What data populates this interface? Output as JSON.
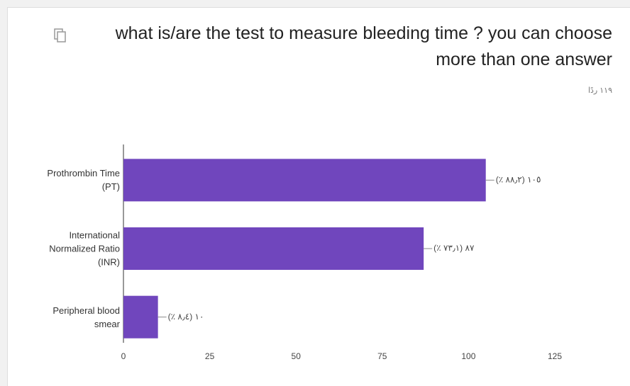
{
  "chart_data": {
    "type": "bar",
    "orientation": "horizontal",
    "title": "what is/are the test to measure bleeding time ? you can choose more than one answer",
    "subtitle": "١١٩ ردًا",
    "categories": [
      "Prothrombin Time (PT)",
      "International Normalized Ratio (INR)",
      "Peripheral blood smear"
    ],
    "values": [
      105,
      87,
      10
    ],
    "value_labels": [
      "١٠٥ (٨٨٫٢ ٪)",
      "٨٧ (٧٣٫١ ٪)",
      "١٠ (٨٫٤ ٪)"
    ],
    "color": "#7046bd",
    "xlim": [
      0,
      125
    ],
    "xticks": [
      0,
      25,
      50,
      75,
      100,
      125
    ],
    "grid": false
  }
}
